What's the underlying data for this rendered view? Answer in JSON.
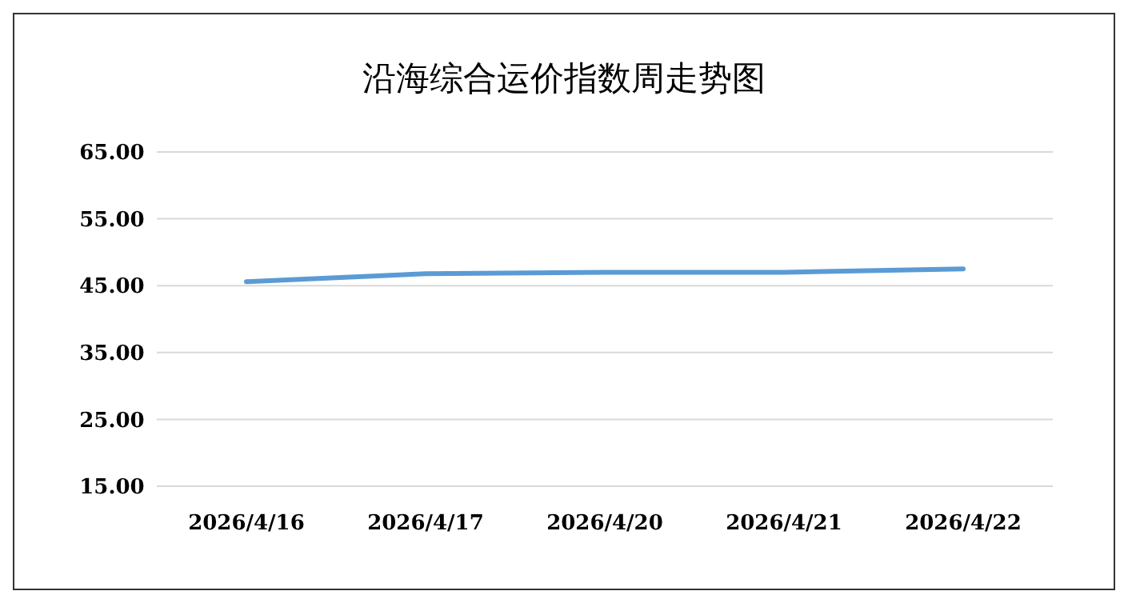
{
  "chart_data": {
    "type": "line",
    "title": "沿海综合运价指数周走势图",
    "categories": [
      "2026/4/16",
      "2026/4/17",
      "2026/4/20",
      "2026/4/21",
      "2026/4/22"
    ],
    "series": [
      {
        "color": "#5b9bd5",
        "values": [
          45.6,
          46.8,
          47.0,
          47.0,
          47.5
        ]
      }
    ],
    "ylim": [
      15,
      65
    ],
    "yticks": [
      {
        "value": 15,
        "label": "15.00"
      },
      {
        "value": 25,
        "label": "25.00"
      },
      {
        "value": 35,
        "label": "35.00"
      },
      {
        "value": 45,
        "label": "45.00"
      },
      {
        "value": 55,
        "label": "55.00"
      },
      {
        "value": 65,
        "label": "65.00"
      }
    ],
    "grid": "y",
    "legend": false,
    "marker": "none",
    "line_style": "solid"
  }
}
